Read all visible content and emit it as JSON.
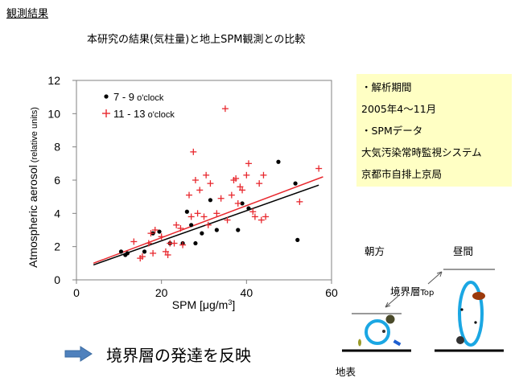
{
  "heading": "観測結果",
  "subtitle": "本研究の結果(気柱量)と地上SPM観測との比較",
  "info_box": {
    "lines": [
      "・解析期間",
      "2005年4〜11月",
      "・SPMデータ",
      "大気汚染常時監視システム",
      "京都市自排上京局"
    ]
  },
  "caption": "境界層の発達を反映",
  "arrow_icon": "right-arrow-icon",
  "diagram": {
    "morning_label": "朝方",
    "daytime_label": "昼間",
    "boundary_label": "境界層",
    "boundary_top_suffix": "Top",
    "ground_label": "地表"
  },
  "chart_data": {
    "type": "scatter",
    "xlabel_prefix": "SPM [",
    "xlabel_unit": "μg/m",
    "xlabel_sup": "3",
    "xlabel_suffix": "]",
    "ylabel_main": "Atmospheric aerosol",
    "ylabel_units": " (relative units)",
    "xlim": [
      0,
      60
    ],
    "ylim": [
      0,
      12
    ],
    "xticks": [
      0,
      20,
      40,
      60
    ],
    "yticks": [
      0,
      2,
      4,
      6,
      8,
      10,
      12
    ],
    "grid": false,
    "legend_position": "top-left",
    "series": [
      {
        "name_range": "7 - 9",
        "name_suffix": " o'clock",
        "marker": "dot",
        "color": "#000000",
        "points": [
          [
            10.5,
            1.7
          ],
          [
            11.5,
            1.5
          ],
          [
            12,
            1.6
          ],
          [
            16,
            1.7
          ],
          [
            18,
            2.8
          ],
          [
            19.5,
            2.9
          ],
          [
            22,
            2.2
          ],
          [
            25,
            2.2
          ],
          [
            26,
            4.1
          ],
          [
            27,
            3.3
          ],
          [
            28,
            2.2
          ],
          [
            29.5,
            2.8
          ],
          [
            31.5,
            4.8
          ],
          [
            33,
            3.0
          ],
          [
            38,
            3.0
          ],
          [
            39,
            4.6
          ],
          [
            40.5,
            4.3
          ],
          [
            47.5,
            7.1
          ],
          [
            51.5,
            5.8
          ],
          [
            52,
            2.4
          ]
        ],
        "trend": [
          [
            4,
            0.9
          ],
          [
            57,
            5.7
          ]
        ]
      },
      {
        "name_range": "11 - 13",
        "name_suffix": " o'clock",
        "marker": "plus",
        "color": "#e8282e",
        "points": [
          [
            13.5,
            2.3
          ],
          [
            15,
            1.3
          ],
          [
            15.5,
            1.4
          ],
          [
            17,
            2.2
          ],
          [
            17.5,
            2.8
          ],
          [
            18,
            1.6
          ],
          [
            18.5,
            3.0
          ],
          [
            20,
            2.6
          ],
          [
            21,
            1.7
          ],
          [
            21.5,
            1.5
          ],
          [
            22,
            2.2
          ],
          [
            23,
            2.2
          ],
          [
            23.5,
            3.3
          ],
          [
            24.5,
            3.1
          ],
          [
            25,
            2.1
          ],
          [
            26.5,
            5.1
          ],
          [
            27,
            3.8
          ],
          [
            27.5,
            7.7
          ],
          [
            28,
            6.0
          ],
          [
            28.5,
            4.0
          ],
          [
            29,
            5.4
          ],
          [
            30,
            3.8
          ],
          [
            30.5,
            6.3
          ],
          [
            31,
            3.3
          ],
          [
            31.5,
            5.8
          ],
          [
            33,
            4.0
          ],
          [
            34,
            4.9
          ],
          [
            35,
            10.3
          ],
          [
            35.5,
            3.6
          ],
          [
            36.5,
            5.1
          ],
          [
            37,
            6.0
          ],
          [
            37.5,
            6.1
          ],
          [
            38,
            4.6
          ],
          [
            38.5,
            5.6
          ],
          [
            39,
            5.4
          ],
          [
            40,
            6.3
          ],
          [
            40.5,
            7.0
          ],
          [
            41.5,
            4.1
          ],
          [
            42,
            3.8
          ],
          [
            43,
            5.8
          ],
          [
            43.5,
            3.6
          ],
          [
            44,
            6.3
          ],
          [
            44.5,
            3.8
          ],
          [
            52.5,
            4.7
          ],
          [
            57,
            6.7
          ]
        ],
        "trend": [
          [
            4,
            1.0
          ],
          [
            58,
            6.2
          ]
        ]
      }
    ]
  }
}
